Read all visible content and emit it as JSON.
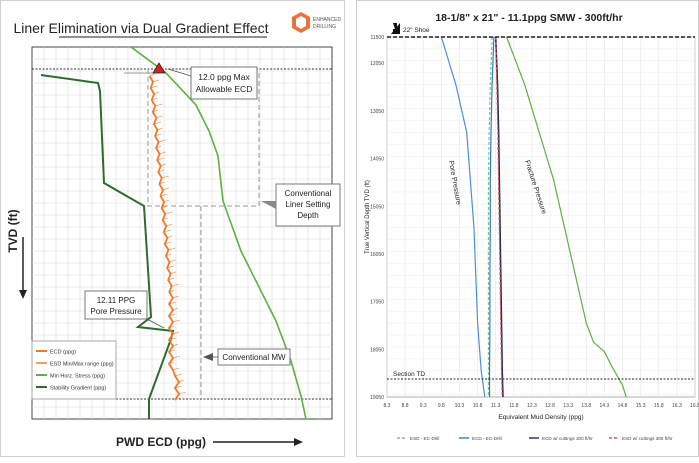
{
  "left_chart": {
    "title": "Liner Elimination via Dual Gradient Effect",
    "logo_text": [
      "ENHANCED",
      "DRILLING"
    ],
    "ylabel": "TVD (ft)",
    "xlabel": "PWD ECD (ppg)",
    "callouts": {
      "max_ecd": [
        "12.0 ppg Max",
        "Allowable ECD"
      ],
      "liner_depth": [
        "Conventional",
        "Liner Setting",
        "Depth"
      ],
      "pore_pressure": [
        "12.11 PPG",
        "Pore Pressure"
      ],
      "conventional_mw": "Conventional MW"
    },
    "legend": [
      {
        "label": "ECD (ppg)",
        "color": "#f07a2a"
      },
      {
        "label": "ESD Min/Max range (ppg)",
        "color": "#f0a060"
      },
      {
        "label": "Min Horz. Stress (ppg)",
        "color": "#5bb040"
      },
      {
        "label": "Stability Gradient (ppg)",
        "color": "#2e6b2e"
      }
    ]
  },
  "chart_data": [
    {
      "type": "line",
      "title": "18-1/8\" x 21\" - 11.1ppg SMW - 300ft/hr",
      "xlabel": "Equivalent Mud Density (ppg)",
      "ylabel": "True Vertical Depth TVD (ft)",
      "xlim": [
        8.3,
        16.8
      ],
      "ylim": [
        19050,
        11500
      ],
      "x_ticks": [
        8.3,
        8.8,
        9.3,
        9.8,
        10.3,
        10.8,
        11.3,
        11.8,
        12.3,
        12.8,
        13.3,
        13.8,
        14.3,
        14.8,
        15.3,
        15.8,
        16.3,
        16.8
      ],
      "y_ticks": [
        11500,
        12050,
        13050,
        14050,
        15050,
        16050,
        17050,
        18050,
        19050
      ],
      "y_tick_labels": [
        "11500",
        "12050",
        "13050",
        "14050",
        "15050",
        "16050",
        "17050",
        "18050",
        "19050"
      ],
      "annotations": [
        "22\" Shoe",
        "Section TD",
        "Pore Pressure",
        "Fracture Pressure"
      ],
      "series": [
        {
          "name": "ESD - EC-Drill",
          "color": "#7fbf9f",
          "dash": "dashed",
          "x": [
            11.2,
            11.15,
            11.12,
            11.1,
            11.1,
            11.1,
            11.1,
            11.1,
            11.1
          ],
          "y": [
            11500,
            12500,
            13500,
            14500,
            15500,
            16500,
            17500,
            18500,
            19050
          ]
        },
        {
          "name": "ECD - EC-Drill",
          "color": "#2c7fb8",
          "dash": "solid",
          "x": [
            11.25,
            11.2,
            11.17,
            11.15,
            11.15,
            11.14,
            11.14,
            11.13,
            11.13
          ],
          "y": [
            11500,
            12500,
            13500,
            14500,
            15500,
            16500,
            17500,
            18500,
            19050
          ]
        },
        {
          "name": "ECD w/ cuttings 300 ft/hr",
          "color": "#1f2a5a",
          "dash": "solid",
          "x": [
            11.3,
            11.35,
            11.38,
            11.4,
            11.42,
            11.44,
            11.46,
            11.48,
            11.5
          ],
          "y": [
            11500,
            12500,
            13500,
            14500,
            15500,
            16500,
            17500,
            18500,
            19050
          ]
        },
        {
          "name": "ESD w/ cuttings 300 ft/hr",
          "color": "#d9534f",
          "dash": "dashed",
          "x": [
            11.3,
            11.33,
            11.36,
            11.38,
            11.4,
            11.42,
            11.44,
            11.46,
            11.48
          ],
          "y": [
            11500,
            12500,
            13500,
            14500,
            15500,
            16500,
            17500,
            18500,
            19050
          ]
        },
        {
          "name": "Pore Pressure",
          "color": "#4a90d9",
          "dash": "solid",
          "x": [
            9.8,
            10.2,
            10.5,
            10.6,
            10.7,
            10.75,
            10.8,
            10.9,
            11.0
          ],
          "y": [
            11500,
            12500,
            13500,
            14500,
            15500,
            16500,
            17500,
            18500,
            19050
          ]
        },
        {
          "name": "Fracture Pressure",
          "color": "#5bb040",
          "dash": "solid",
          "x": [
            11.6,
            12.1,
            12.5,
            12.9,
            13.2,
            13.5,
            13.8,
            14.0,
            14.3,
            14.5,
            14.8,
            14.9
          ],
          "y": [
            11500,
            12500,
            13500,
            14500,
            15500,
            16500,
            17500,
            17900,
            18100,
            18400,
            18800,
            19050
          ]
        }
      ],
      "legend": [
        "ESD - EC-Drill",
        "ECD - EC-Drill",
        "ECD w/ cuttings 300 ft/hr",
        "ESD w/ cuttings 300 ft/hr"
      ],
      "legend_position": "bottom"
    }
  ]
}
